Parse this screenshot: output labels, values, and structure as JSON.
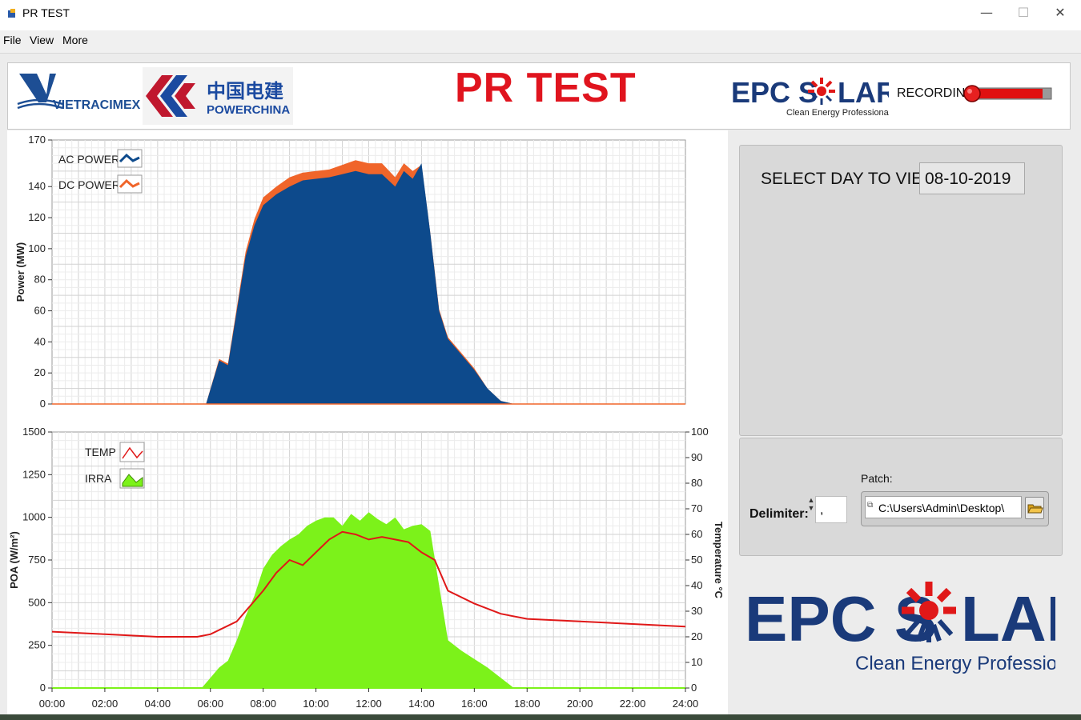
{
  "window": {
    "title": "PR TEST",
    "min_glyph": "—",
    "max_glyph": "☐",
    "close_glyph": "✕"
  },
  "menu": {
    "items": [
      "File",
      "View",
      "More"
    ]
  },
  "header": {
    "title": "PR TEST",
    "logos": {
      "vietracimex": "VIETRACIMEX",
      "powerchina_cn": "中国电建",
      "powerchina_en": "POWERCHINA",
      "epc_left": "EPC S",
      "epc_right": "LAR",
      "epc_tagline": "Clean Energy Professional"
    },
    "recording_label": "RECORDING",
    "recording_on": true
  },
  "controls": {
    "select_day_label": "SELECT DAY TO VIEW:",
    "select_day_value": "08-10-2019",
    "delimiter_label": "Delimiter:",
    "delimiter_value": ",",
    "patch_label": "Patch:",
    "patch_value": "C:\\Users\\Admin\\Desktop\\"
  },
  "big_logo": {
    "left": "EPC S",
    "right": "LAR",
    "tagline": "Clean Energy Professional"
  },
  "colors": {
    "ac_power": "#0d4a8c",
    "dc_power": "#f0652a",
    "temp": "#e01818",
    "irra": "#7cf21a",
    "title_red": "#e0141e",
    "epc_blue": "#1a3a7a"
  },
  "chart_data": [
    {
      "type": "area",
      "ylabel": "Power (MW)",
      "ylim": [
        0,
        170
      ],
      "yticks": [
        0,
        20,
        40,
        60,
        80,
        100,
        120,
        140,
        170
      ],
      "xlim": [
        "00:00",
        "24:00"
      ],
      "grid": true,
      "legend_position": "top-left",
      "series": [
        {
          "name": "AC POWER",
          "x": [
            "00:00",
            "05:50",
            "06:20",
            "06:40",
            "07:00",
            "07:20",
            "07:40",
            "08:00",
            "08:30",
            "09:00",
            "09:30",
            "10:00",
            "10:30",
            "11:00",
            "11:30",
            "12:00",
            "12:30",
            "13:00",
            "13:20",
            "13:40",
            "14:00",
            "14:20",
            "14:40",
            "15:00",
            "15:30",
            "16:00",
            "16:30",
            "17:00",
            "17:30",
            "24:00"
          ],
          "values": [
            0,
            0,
            28,
            25,
            60,
            95,
            115,
            128,
            135,
            140,
            144,
            145,
            146,
            148,
            150,
            148,
            148,
            140,
            150,
            145,
            155,
            110,
            60,
            42,
            32,
            22,
            10,
            2,
            0,
            0
          ]
        },
        {
          "name": "DC POWER",
          "x": [
            "00:00",
            "05:50",
            "06:20",
            "06:40",
            "07:00",
            "07:20",
            "07:40",
            "08:00",
            "08:30",
            "09:00",
            "09:30",
            "10:00",
            "10:30",
            "11:00",
            "11:30",
            "12:00",
            "12:30",
            "13:00",
            "13:20",
            "13:40",
            "14:00",
            "14:20",
            "14:40",
            "15:00",
            "15:30",
            "16:00",
            "16:30",
            "17:00",
            "17:30",
            "24:00"
          ],
          "values": [
            0,
            0,
            29,
            26,
            62,
            98,
            119,
            133,
            140,
            146,
            149,
            150,
            151,
            154,
            157,
            155,
            155,
            146,
            155,
            150,
            154,
            110,
            61,
            43,
            33,
            23,
            10,
            2,
            0,
            0
          ]
        }
      ]
    },
    {
      "type": "line",
      "ylabel": "POA (W/m²)",
      "y2label": "Temperature °C",
      "ylim": [
        0,
        1500
      ],
      "yticks": [
        0,
        250,
        500,
        750,
        1000,
        1250,
        1500
      ],
      "y2lim": [
        0,
        100
      ],
      "y2ticks": [
        0,
        10,
        20,
        30,
        40,
        50,
        60,
        70,
        80,
        90,
        100
      ],
      "xticks": [
        "00:00",
        "02:00",
        "04:00",
        "06:00",
        "08:00",
        "10:00",
        "12:00",
        "14:00",
        "16:00",
        "18:00",
        "20:00",
        "22:00",
        "24:00"
      ],
      "grid": true,
      "legend_position": "top-left",
      "series": [
        {
          "name": "TEMP",
          "axis": "right",
          "x": [
            "00:00",
            "02:00",
            "04:00",
            "05:30",
            "06:00",
            "07:00",
            "07:30",
            "08:00",
            "08:30",
            "09:00",
            "09:30",
            "10:00",
            "10:30",
            "11:00",
            "11:30",
            "12:00",
            "12:30",
            "13:00",
            "13:30",
            "14:00",
            "14:30",
            "15:00",
            "16:00",
            "17:00",
            "18:00",
            "20:00",
            "22:00",
            "24:00"
          ],
          "values": [
            22,
            21,
            20,
            20,
            21,
            26,
            32,
            38,
            45,
            50,
            48,
            53,
            58,
            61,
            60,
            58,
            59,
            58,
            57,
            53,
            50,
            38,
            33,
            29,
            27,
            26,
            25,
            24
          ]
        },
        {
          "name": "IRRA",
          "axis": "left",
          "x": [
            "00:00",
            "05:40",
            "06:00",
            "06:20",
            "06:40",
            "07:00",
            "07:20",
            "07:40",
            "08:00",
            "08:20",
            "08:40",
            "09:00",
            "09:20",
            "09:40",
            "10:00",
            "10:20",
            "10:40",
            "11:00",
            "11:20",
            "11:40",
            "12:00",
            "12:20",
            "12:40",
            "13:00",
            "13:20",
            "13:40",
            "14:00",
            "14:20",
            "14:40",
            "15:00",
            "15:30",
            "16:00",
            "16:30",
            "17:00",
            "17:30",
            "24:00"
          ],
          "values": [
            0,
            0,
            60,
            120,
            160,
            280,
            420,
            540,
            700,
            780,
            830,
            870,
            900,
            950,
            980,
            1000,
            1000,
            950,
            1020,
            980,
            1030,
            990,
            960,
            1000,
            930,
            950,
            960,
            920,
            600,
            280,
            220,
            170,
            120,
            60,
            0,
            0
          ]
        }
      ]
    }
  ]
}
